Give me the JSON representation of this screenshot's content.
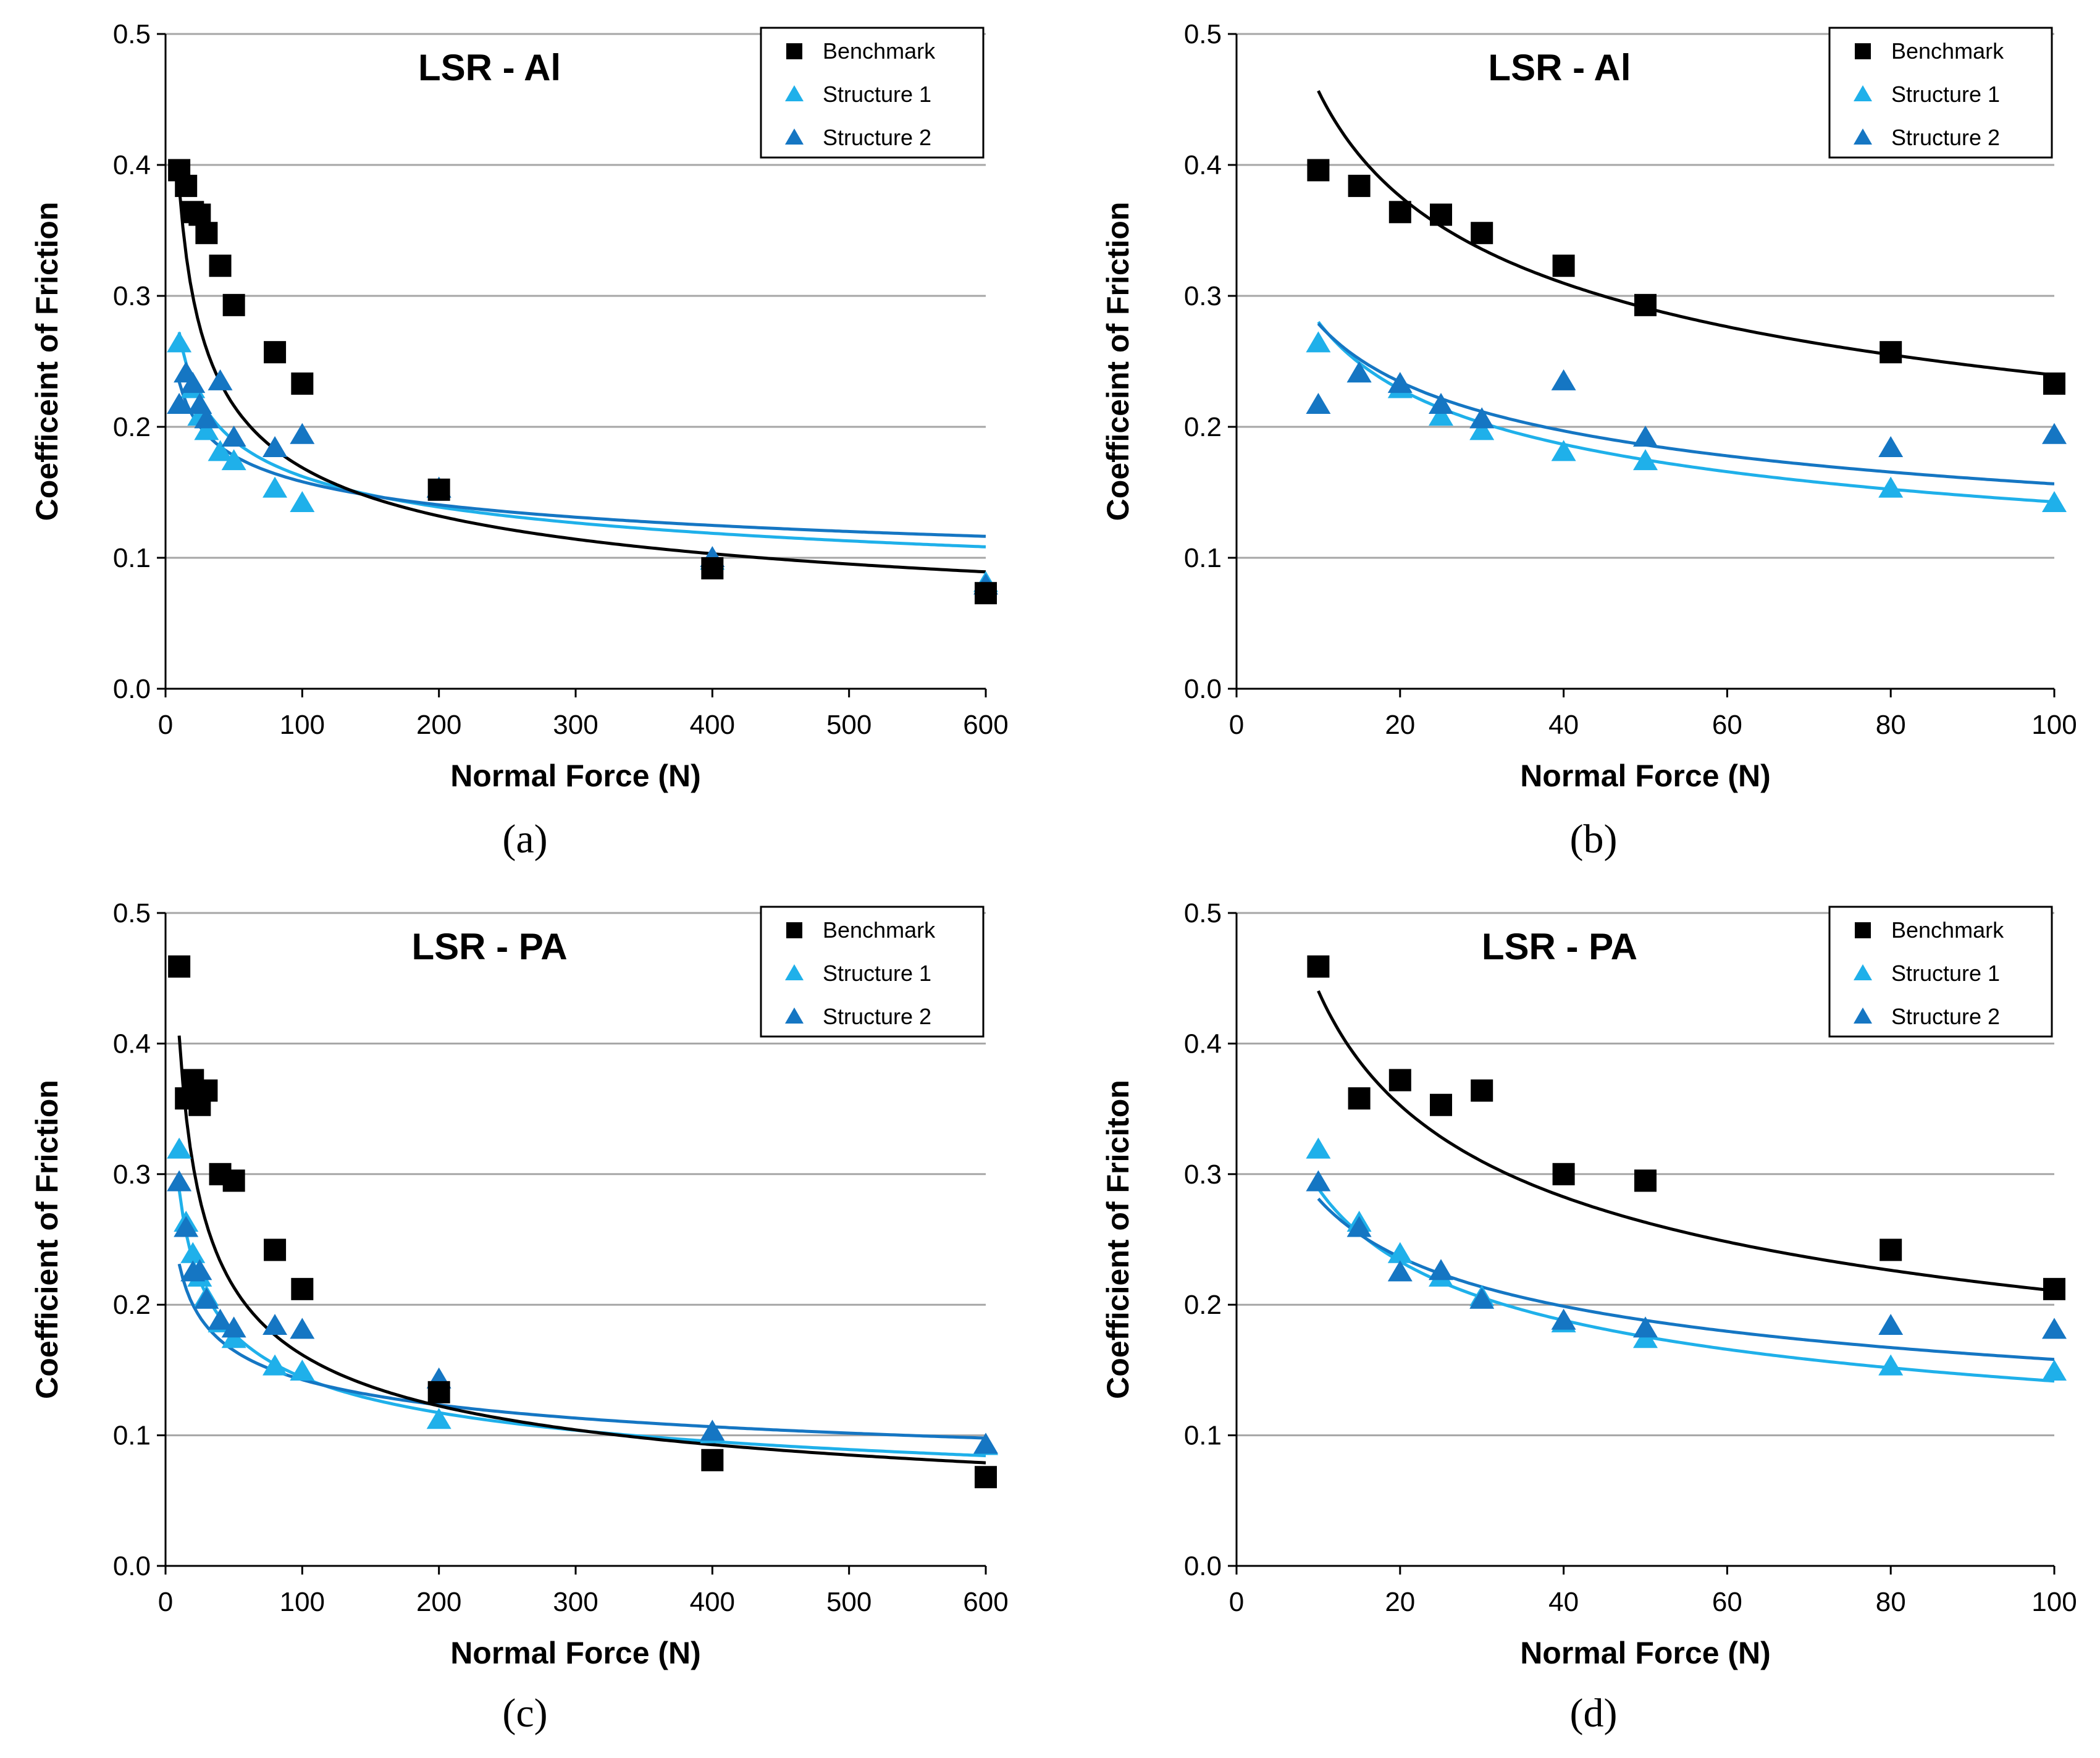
{
  "colors": {
    "benchmark": "#000000",
    "structure_1": "#1FB0EA",
    "structure_2": "#1576C3",
    "grid": "#a6a6a6",
    "axis": "#000000"
  },
  "marker_shapes": {
    "benchmark": "square",
    "structure_1": "triangle",
    "structure_2": "triangle"
  },
  "chart_data": [
    {
      "id": "a",
      "type": "scatter",
      "title": "LSR - Al",
      "caption": "(a)",
      "xlabel": "Normal Force (N)",
      "ylabel": "Coefficeint of Friction",
      "xlim": [
        0,
        600
      ],
      "ylim": [
        0,
        0.5
      ],
      "xticks": [
        "0",
        "100",
        "200",
        "300",
        "400",
        "500",
        "600"
      ],
      "yticks": [
        "0.0",
        "0.1",
        "0.2",
        "0.3",
        "0.4",
        "0.5"
      ],
      "legend_position": "top-right",
      "series": [
        {
          "name": "Benchmark",
          "color_key": "benchmark",
          "points": [
            [
              10,
              0.396
            ],
            [
              15,
              0.384
            ],
            [
              20,
              0.364
            ],
            [
              25,
              0.362
            ],
            [
              30,
              0.348
            ],
            [
              40,
              0.323
            ],
            [
              50,
              0.293
            ],
            [
              80,
              0.257
            ],
            [
              100,
              0.233
            ],
            [
              200,
              0.152
            ],
            [
              400,
              0.092
            ],
            [
              600,
              0.073
            ]
          ],
          "trend": {
            "a": 0.87,
            "b": -0.356,
            "xmin": 10,
            "xmax": 600
          }
        },
        {
          "name": "Structure 1",
          "color_key": "structure_1",
          "points": [
            [
              10,
              0.263
            ],
            [
              15,
              0.24
            ],
            [
              20,
              0.228
            ],
            [
              25,
              0.207
            ],
            [
              30,
              0.196
            ],
            [
              40,
              0.18
            ],
            [
              50,
              0.173
            ],
            [
              80,
              0.152
            ],
            [
              100,
              0.141
            ],
            [
              200,
              0.152
            ],
            [
              400,
              0.097
            ],
            [
              600,
              0.08
            ]
          ],
          "trend": {
            "a": 0.457,
            "b": -0.225,
            "xmin": 10,
            "xmax": 600
          }
        },
        {
          "name": "Structure 2",
          "color_key": "structure_2",
          "points": [
            [
              10,
              0.216
            ],
            [
              15,
              0.24
            ],
            [
              20,
              0.232
            ],
            [
              25,
              0.216
            ],
            [
              30,
              0.205
            ],
            [
              40,
              0.234
            ],
            [
              50,
              0.191
            ],
            [
              80,
              0.183
            ],
            [
              100,
              0.193
            ],
            [
              200,
              0.152
            ],
            [
              400,
              0.099
            ],
            [
              600,
              0.078
            ]
          ],
          "trend": {
            "a": 0.3475,
            "b": -0.171,
            "xmin": 10,
            "xmax": 600
          }
        }
      ]
    },
    {
      "id": "b",
      "type": "scatter",
      "title": "LSR - Al",
      "caption": "(b)",
      "xlabel": "Normal Force (N)",
      "ylabel": "Coefficeint of Friction",
      "xlim": [
        0,
        100
      ],
      "ylim": [
        0,
        0.5
      ],
      "xticks": [
        "0",
        "20",
        "40",
        "60",
        "80",
        "100"
      ],
      "yticks": [
        "0.0",
        "0.1",
        "0.2",
        "0.3",
        "0.4",
        "0.5"
      ],
      "legend_position": "top-right",
      "series": [
        {
          "name": "Benchmark",
          "color_key": "benchmark",
          "points": [
            [
              10,
              0.396
            ],
            [
              15,
              0.384
            ],
            [
              20,
              0.364
            ],
            [
              25,
              0.362
            ],
            [
              30,
              0.348
            ],
            [
              40,
              0.323
            ],
            [
              50,
              0.293
            ],
            [
              80,
              0.257
            ],
            [
              100,
              0.233
            ]
          ],
          "trend": {
            "a": 0.87,
            "b": -0.28,
            "xmin": 10,
            "xmax": 100
          }
        },
        {
          "name": "Structure 1",
          "color_key": "structure_1",
          "points": [
            [
              10,
              0.263
            ],
            [
              15,
              0.24
            ],
            [
              20,
              0.228
            ],
            [
              25,
              0.207
            ],
            [
              30,
              0.196
            ],
            [
              40,
              0.18
            ],
            [
              50,
              0.173
            ],
            [
              80,
              0.152
            ],
            [
              100,
              0.141
            ]
          ],
          "trend": {
            "a": 0.55,
            "b": -0.293,
            "xmin": 10,
            "xmax": 100
          }
        },
        {
          "name": "Structure 2",
          "color_key": "structure_2",
          "points": [
            [
              10,
              0.216
            ],
            [
              15,
              0.24
            ],
            [
              20,
              0.232
            ],
            [
              25,
              0.216
            ],
            [
              30,
              0.205
            ],
            [
              40,
              0.234
            ],
            [
              50,
              0.191
            ],
            [
              80,
              0.183
            ],
            [
              100,
              0.193
            ]
          ],
          "trend": {
            "a": 0.497,
            "b": -0.251,
            "xmin": 10,
            "xmax": 100
          }
        }
      ]
    },
    {
      "id": "c",
      "type": "scatter",
      "title": "LSR - PA",
      "caption": "(c)",
      "xlabel": "Normal Force (N)",
      "ylabel": "Coefficient of Friction",
      "xlim": [
        0,
        600
      ],
      "ylim": [
        0,
        0.5
      ],
      "xticks": [
        "0",
        "100",
        "200",
        "300",
        "400",
        "500",
        "600"
      ],
      "yticks": [
        "0.0",
        "0.1",
        "0.2",
        "0.3",
        "0.4",
        "0.5"
      ],
      "legend_position": "top-right",
      "series": [
        {
          "name": "Benchmark",
          "color_key": "benchmark",
          "points": [
            [
              10,
              0.459
            ],
            [
              15,
              0.358
            ],
            [
              20,
              0.372
            ],
            [
              25,
              0.353
            ],
            [
              30,
              0.364
            ],
            [
              40,
              0.3
            ],
            [
              50,
              0.295
            ],
            [
              80,
              0.242
            ],
            [
              100,
              0.212
            ],
            [
              200,
              0.133
            ],
            [
              400,
              0.081
            ],
            [
              600,
              0.068
            ]
          ],
          "trend": {
            "a": 1.02,
            "b": -0.4,
            "xmin": 10,
            "xmax": 600
          }
        },
        {
          "name": "Structure 1",
          "color_key": "structure_1",
          "points": [
            [
              10,
              0.318
            ],
            [
              15,
              0.262
            ],
            [
              20,
              0.238
            ],
            [
              25,
              0.22
            ],
            [
              30,
              0.205
            ],
            [
              40,
              0.185
            ],
            [
              50,
              0.173
            ],
            [
              80,
              0.152
            ],
            [
              100,
              0.148
            ],
            [
              200,
              0.111
            ],
            [
              400,
              0.1
            ],
            [
              600,
              0.091
            ]
          ],
          "trend": {
            "a": 0.575,
            "b": -0.3,
            "xmin": 10,
            "xmax": 600
          }
        },
        {
          "name": "Structure 2",
          "color_key": "structure_2",
          "points": [
            [
              10,
              0.293
            ],
            [
              15,
              0.258
            ],
            [
              20,
              0.224
            ],
            [
              25,
              0.225
            ],
            [
              30,
              0.203
            ],
            [
              40,
              0.187
            ],
            [
              50,
              0.181
            ],
            [
              80,
              0.183
            ],
            [
              100,
              0.18
            ],
            [
              200,
              0.142
            ],
            [
              400,
              0.102
            ],
            [
              600,
              0.092
            ]
          ],
          "trend": {
            "a": 0.375,
            "b": -0.21,
            "xmin": 10,
            "xmax": 600
          }
        }
      ]
    },
    {
      "id": "d",
      "type": "scatter",
      "title": "LSR - PA",
      "caption": "(d)",
      "xlabel": "Normal Force (N)",
      "ylabel": "Coefficient of Friciton",
      "xlim": [
        0,
        100
      ],
      "ylim": [
        0,
        0.5
      ],
      "xticks": [
        "0",
        "20",
        "40",
        "60",
        "80",
        "100"
      ],
      "yticks": [
        "0.0",
        "0.1",
        "0.2",
        "0.3",
        "0.4",
        "0.5"
      ],
      "legend_position": "top-right",
      "series": [
        {
          "name": "Benchmark",
          "color_key": "benchmark",
          "points": [
            [
              10,
              0.459
            ],
            [
              15,
              0.358
            ],
            [
              20,
              0.372
            ],
            [
              25,
              0.353
            ],
            [
              30,
              0.364
            ],
            [
              40,
              0.3
            ],
            [
              50,
              0.295
            ],
            [
              80,
              0.242
            ],
            [
              100,
              0.212
            ]
          ],
          "trend": {
            "a": 0.92,
            "b": -0.32,
            "xmin": 10,
            "xmax": 100
          }
        },
        {
          "name": "Structure 1",
          "color_key": "structure_1",
          "points": [
            [
              10,
              0.318
            ],
            [
              15,
              0.262
            ],
            [
              20,
              0.238
            ],
            [
              25,
              0.22
            ],
            [
              30,
              0.205
            ],
            [
              40,
              0.185
            ],
            [
              50,
              0.173
            ],
            [
              80,
              0.152
            ],
            [
              100,
              0.148
            ]
          ],
          "trend": {
            "a": 0.59,
            "b": -0.31,
            "xmin": 10,
            "xmax": 100
          }
        },
        {
          "name": "Structure 2",
          "color_key": "structure_2",
          "points": [
            [
              10,
              0.293
            ],
            [
              15,
              0.258
            ],
            [
              20,
              0.224
            ],
            [
              25,
              0.225
            ],
            [
              30,
              0.203
            ],
            [
              40,
              0.187
            ],
            [
              50,
              0.181
            ],
            [
              80,
              0.183
            ],
            [
              100,
              0.18
            ]
          ],
          "trend": {
            "a": 0.5,
            "b": -0.25,
            "xmin": 10,
            "xmax": 100
          }
        }
      ]
    }
  ]
}
